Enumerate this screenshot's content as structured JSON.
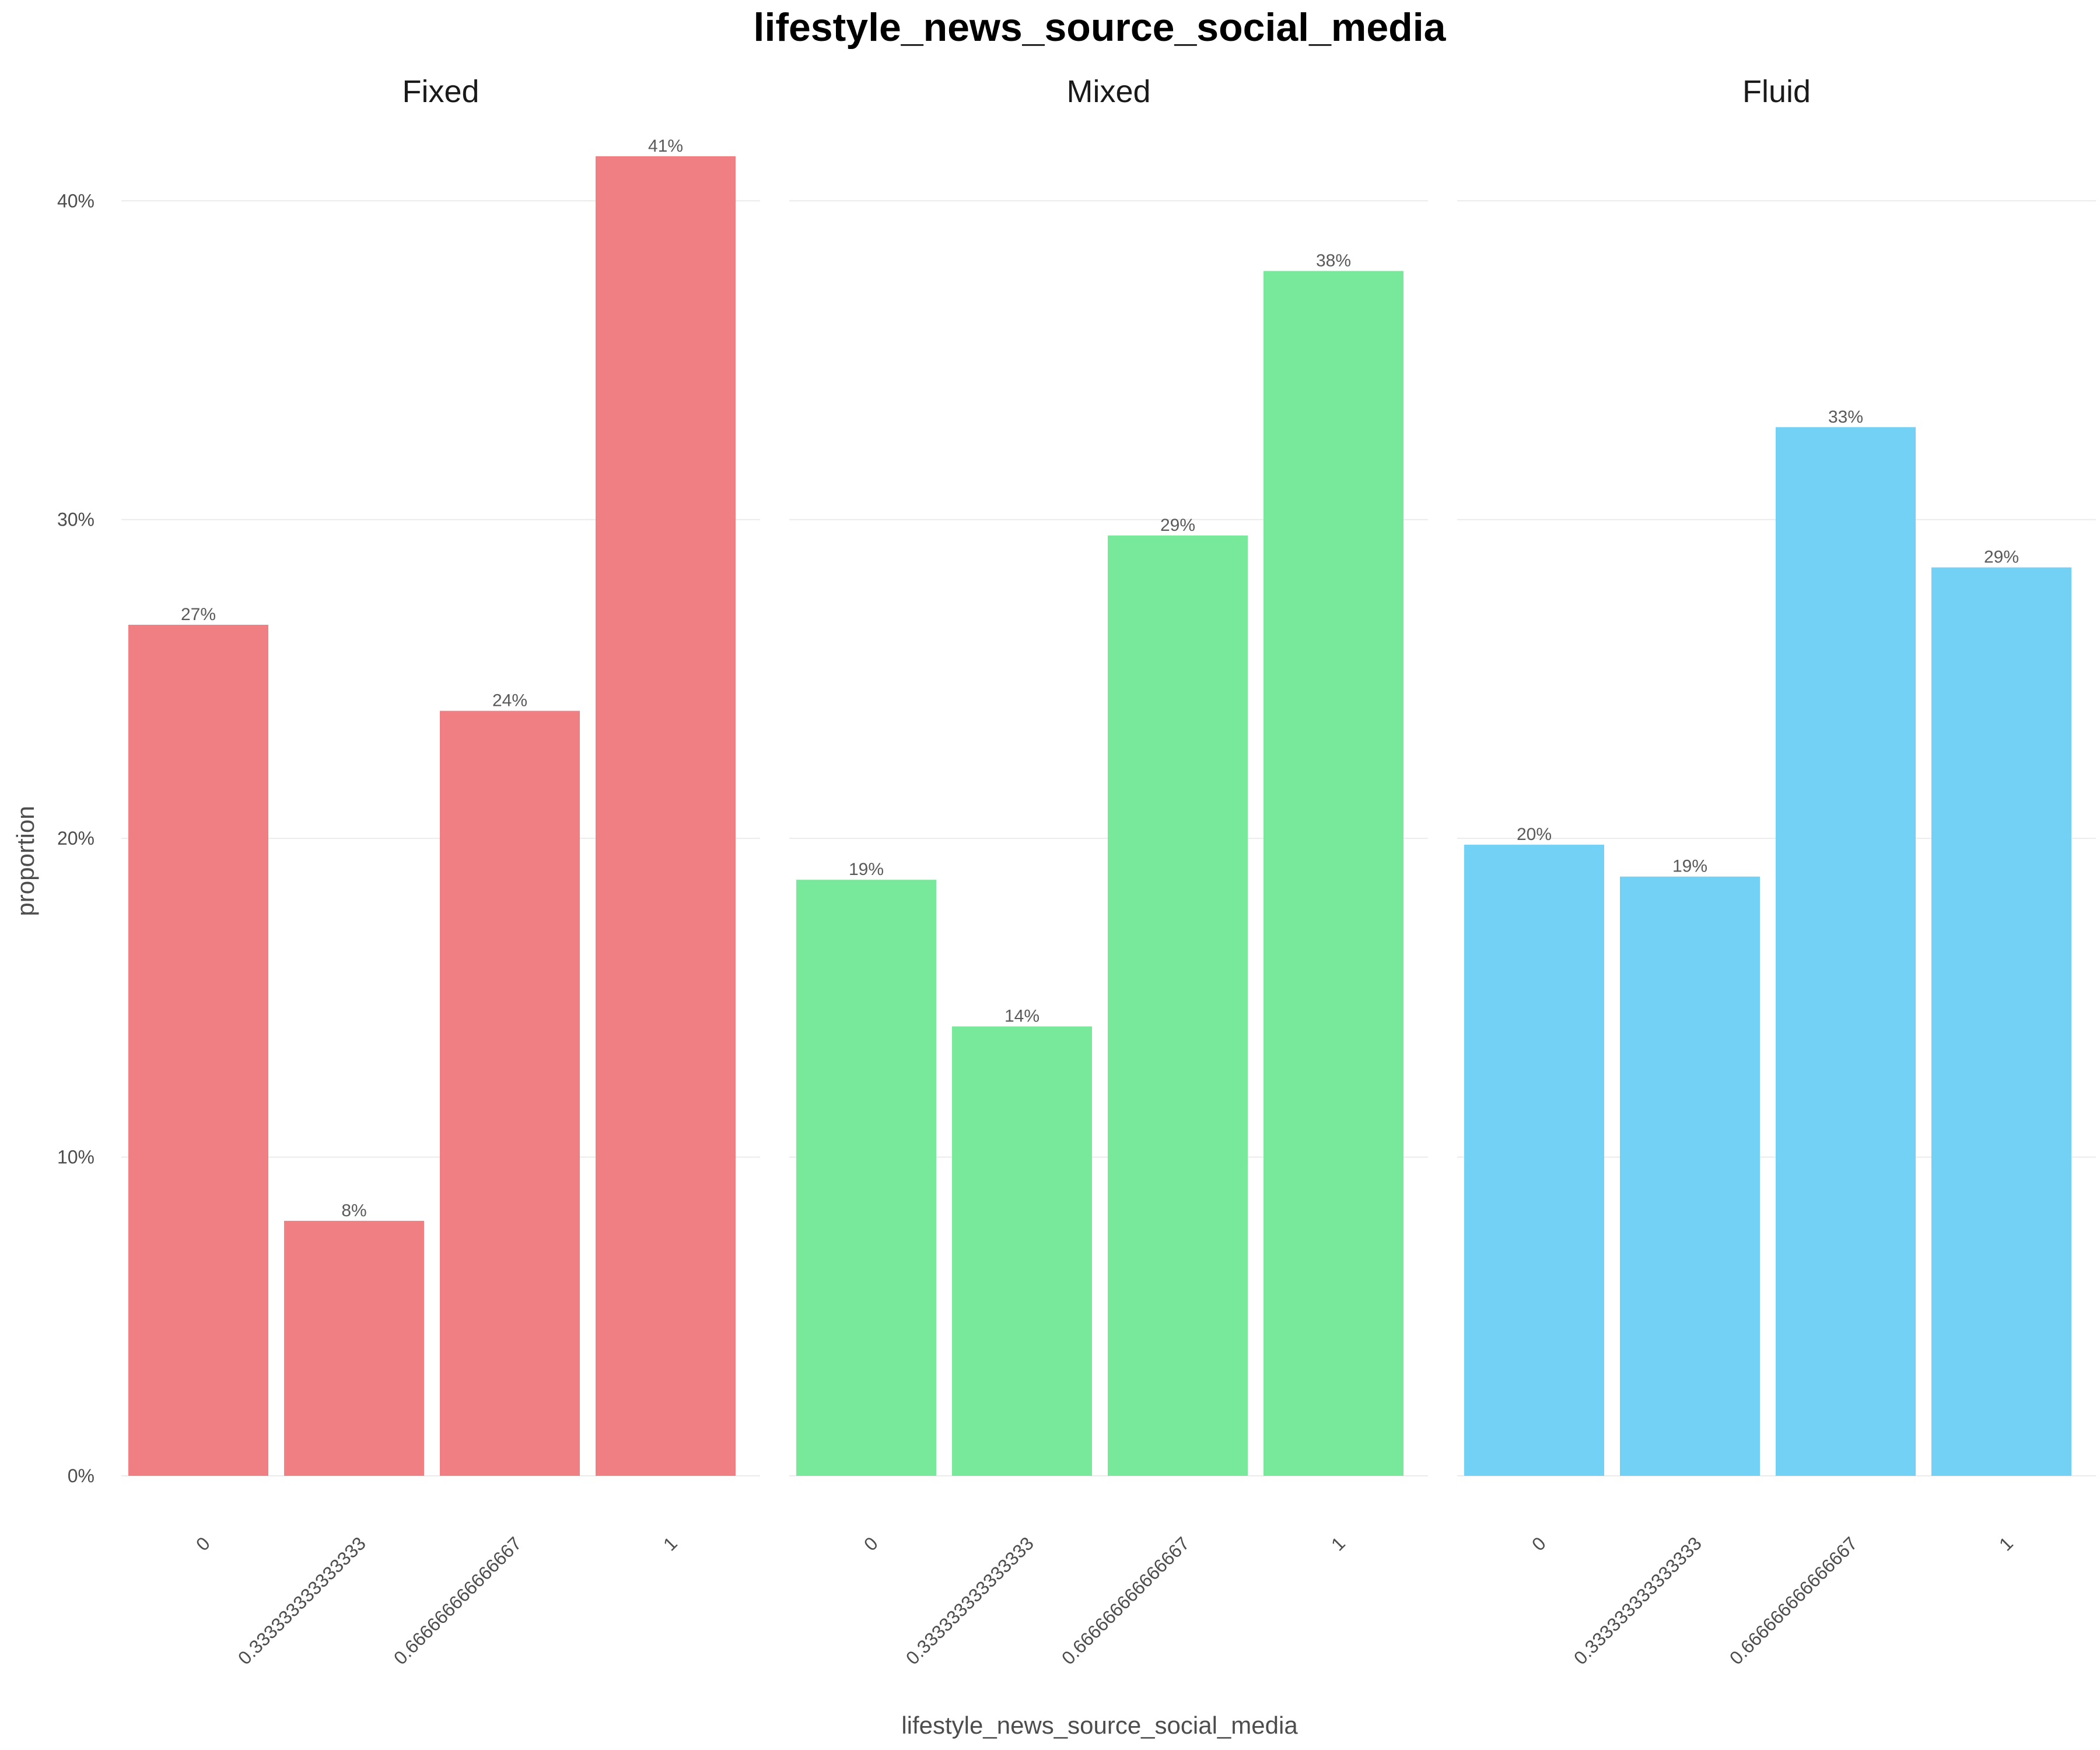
{
  "chart_data": {
    "type": "bar",
    "title": "lifestyle_news_source_social_media",
    "xlabel": "lifestyle_news_source_social_media",
    "ylabel": "proportion",
    "ylim": [
      0,
      0.42
    ],
    "yticks": [
      0,
      0.1,
      0.2,
      0.3,
      0.4
    ],
    "ytick_labels": [
      "0%",
      "10%",
      "20%",
      "30%",
      "40%"
    ],
    "categories": [
      "0",
      "0.333333333333333",
      "0.666666666666667",
      "1"
    ],
    "grid": true,
    "legend": "none",
    "facets": [
      {
        "name": "Fixed",
        "color": "#F07F83",
        "values": [
          0.267,
          0.08,
          0.24,
          0.414
        ],
        "labels": [
          "27%",
          "8%",
          "24%",
          "41%"
        ]
      },
      {
        "name": "Mixed",
        "color": "#78E89A",
        "values": [
          0.187,
          0.141,
          0.295,
          0.378
        ],
        "labels": [
          "19%",
          "14%",
          "29%",
          "38%"
        ]
      },
      {
        "name": "Fluid",
        "color": "#72D1F5",
        "values": [
          0.198,
          0.188,
          0.329,
          0.285
        ],
        "labels": [
          "20%",
          "19%",
          "33%",
          "29%"
        ]
      }
    ]
  }
}
